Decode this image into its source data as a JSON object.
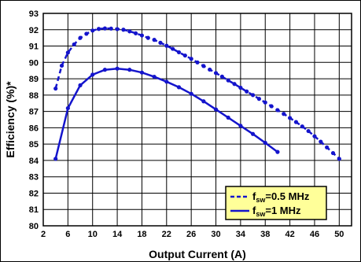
{
  "chart_data": {
    "type": "line",
    "title": "",
    "xlabel": "Output Current (A)",
    "ylabel": "Efficiency (%)*",
    "xlim": [
      2,
      52
    ],
    "ylim": [
      80,
      93
    ],
    "xticks": [
      2,
      6,
      10,
      14,
      18,
      22,
      26,
      30,
      34,
      38,
      42,
      46,
      50
    ],
    "yticks": [
      80,
      81,
      82,
      83,
      84,
      85,
      86,
      87,
      88,
      89,
      90,
      91,
      92,
      93
    ],
    "grid": true,
    "legend_position": "bottom-right",
    "series": [
      {
        "name": "fsw=0.5 MHz",
        "name_main": "f",
        "name_sub": "sw",
        "name_rest": "=0.5 MHz",
        "style": "dashed",
        "color": "#1414cc",
        "x": [
          4,
          5,
          6,
          7,
          8,
          9,
          10,
          11,
          12,
          13,
          14,
          15,
          16,
          17,
          18,
          19,
          20,
          21,
          22,
          23,
          24,
          25,
          26,
          27,
          28,
          29,
          30,
          31,
          32,
          33,
          34,
          35,
          36,
          37,
          38,
          39,
          40,
          41,
          42,
          43,
          44,
          45,
          46,
          47,
          48,
          49,
          50
        ],
        "y": [
          88.4,
          89.8,
          90.6,
          91.1,
          91.5,
          91.75,
          91.95,
          92.05,
          92.08,
          92.07,
          92.04,
          92.0,
          91.9,
          91.78,
          91.65,
          91.5,
          91.38,
          91.2,
          91.02,
          90.83,
          90.62,
          90.42,
          90.22,
          90.0,
          89.78,
          89.56,
          89.35,
          89.13,
          88.9,
          88.68,
          88.45,
          88.22,
          88.0,
          87.77,
          87.55,
          87.32,
          87.08,
          86.85,
          86.6,
          86.35,
          86.08,
          85.8,
          85.48,
          85.15,
          84.8,
          84.45,
          84.1
        ]
      },
      {
        "name": "fsw=1 MHz",
        "name_main": "f",
        "name_sub": "sw",
        "name_rest": "=1 MHz",
        "style": "solid",
        "color": "#1414cc",
        "x": [
          4,
          6,
          8,
          10,
          12,
          14,
          16,
          18,
          20,
          22,
          24,
          26,
          28,
          30,
          32,
          34,
          36,
          38,
          40
        ],
        "y": [
          84.1,
          87.2,
          88.6,
          89.25,
          89.55,
          89.62,
          89.55,
          89.38,
          89.12,
          88.82,
          88.48,
          88.08,
          87.62,
          87.12,
          86.62,
          86.12,
          85.62,
          85.08,
          84.52
        ]
      }
    ]
  }
}
